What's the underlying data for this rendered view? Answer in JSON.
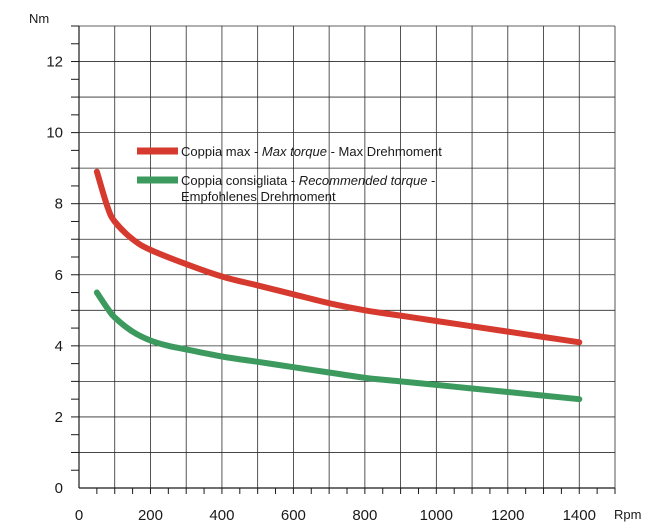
{
  "chart_data": {
    "type": "line",
    "title": "",
    "xlabel": "Rpm",
    "ylabel": "Nm",
    "xlim": [
      0,
      1500
    ],
    "ylim": [
      0,
      13
    ],
    "x_ticks": [
      0,
      200,
      400,
      600,
      800,
      1000,
      1200,
      1400
    ],
    "y_ticks": [
      0,
      2,
      4,
      6,
      8,
      10,
      12
    ],
    "grid": true,
    "legend_position": "upper-middle",
    "series": [
      {
        "name": "Coppia max - Max torque - Max Drehmoment",
        "legend_parts": [
          {
            "text": "Coppia max -",
            "italic": false
          },
          {
            "text": "Max torque",
            "italic": true
          },
          {
            "text": "- Max Drehmoment",
            "italic": false
          }
        ],
        "color": "#d63a2f",
        "x": [
          50,
          80,
          100,
          150,
          200,
          300,
          400,
          500,
          600,
          700,
          800,
          900,
          1000,
          1100,
          1200,
          1300,
          1400
        ],
        "y": [
          8.9,
          7.9,
          7.5,
          7.0,
          6.7,
          6.3,
          5.95,
          5.7,
          5.45,
          5.2,
          5.0,
          4.85,
          4.7,
          4.55,
          4.4,
          4.25,
          4.1
        ]
      },
      {
        "name": "Coppia consigliata - Recommended torque - Empfohlenes Drehmoment",
        "legend_parts": [
          {
            "text": "Coppia consigliata -",
            "italic": false
          },
          {
            "text": "Recommended torque",
            "italic": true
          },
          {
            "text": "-",
            "italic": false
          }
        ],
        "legend_line2": "Empfohlenes Drehmoment",
        "color": "#3d9a5e",
        "x": [
          50,
          80,
          100,
          150,
          200,
          250,
          300,
          400,
          500,
          600,
          700,
          800,
          900,
          1000,
          1100,
          1200,
          1300,
          1400
        ],
        "y": [
          5.5,
          5.05,
          4.8,
          4.4,
          4.15,
          4.0,
          3.9,
          3.7,
          3.55,
          3.4,
          3.25,
          3.1,
          3.0,
          2.9,
          2.8,
          2.7,
          2.6,
          2.5
        ]
      }
    ]
  }
}
